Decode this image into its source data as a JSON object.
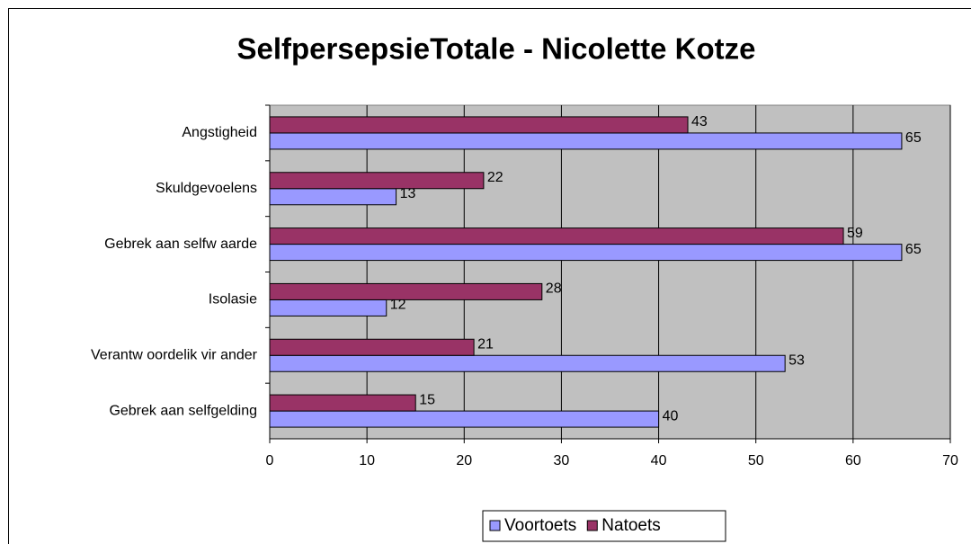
{
  "chart_data": {
    "type": "hbar",
    "title": "SelfpersepsieTotale - Nicolette Kotze",
    "categories": [
      "Angstigheid",
      "Skuldgevoelens",
      "Gebrek aan selfw aarde",
      "Isolasie",
      "Verantw oordelik vir ander",
      "Gebrek aan selfgelding"
    ],
    "series": [
      {
        "name": "Voortoets",
        "color": "#9999ff",
        "values": [
          65,
          13,
          65,
          12,
          53,
          40
        ]
      },
      {
        "name": "Natoets",
        "color": "#993366",
        "values": [
          43,
          22,
          59,
          28,
          21,
          15
        ]
      }
    ],
    "xlim": [
      0,
      70
    ],
    "xticks": [
      0,
      10,
      20,
      30,
      40,
      50,
      60,
      70
    ],
    "grid": true,
    "legend": "bottom"
  }
}
